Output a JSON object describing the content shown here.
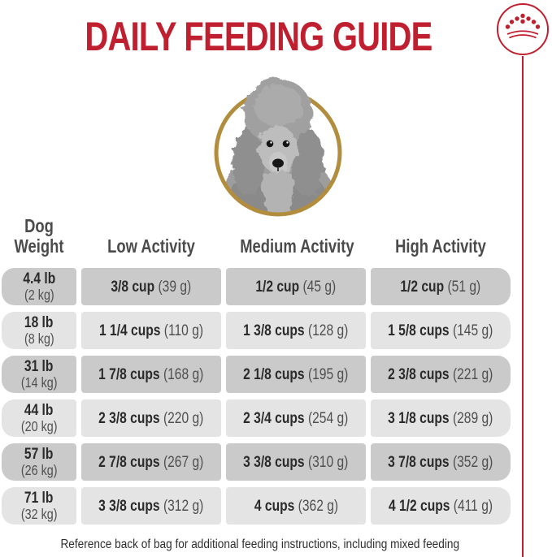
{
  "page": {
    "title": "DAILY FEEDING GUIDE",
    "footer_note": "Reference back of bag for additional feeding instructions, including mixed feeding"
  },
  "brand": {
    "logo": "royal-canin-crown",
    "colors": {
      "title_red": "#c01f2f",
      "ring_gold": "#b18d3d",
      "row_dark": "#cacaca",
      "row_light": "#e4e4e4"
    }
  },
  "hero": {
    "image": "grayscale-poodle-portrait-in-gold-ring"
  },
  "table": {
    "header": {
      "weight_line1": "Dog",
      "weight_line2": "Weight",
      "columns": [
        "Low Activity",
        "Medium Activity",
        "High Activity"
      ]
    },
    "rows": [
      {
        "weight_lb": "4.4 lb",
        "weight_kg": "(2 kg)",
        "low": {
          "amount": "3/8 cup",
          "grams": "(39 g)"
        },
        "medium": {
          "amount": "1/2 cup",
          "grams": "(45 g)"
        },
        "high": {
          "amount": "1/2 cup",
          "grams": "(51 g)"
        }
      },
      {
        "weight_lb": "18 lb",
        "weight_kg": "(8 kg)",
        "low": {
          "amount": "1 1/4 cups",
          "grams": "(110 g)"
        },
        "medium": {
          "amount": "1 3/8 cups",
          "grams": "(128 g)"
        },
        "high": {
          "amount": "1 5/8 cups",
          "grams": "(145 g)"
        }
      },
      {
        "weight_lb": "31 lb",
        "weight_kg": "(14 kg)",
        "low": {
          "amount": "1 7/8 cups",
          "grams": "(168 g)"
        },
        "medium": {
          "amount": "2 1/8 cups",
          "grams": "(195 g)"
        },
        "high": {
          "amount": "2 3/8 cups",
          "grams": "(221 g)"
        }
      },
      {
        "weight_lb": "44 lb",
        "weight_kg": "(20 kg)",
        "low": {
          "amount": "2 3/8 cups",
          "grams": "(220 g)"
        },
        "medium": {
          "amount": "2 3/4 cups",
          "grams": "(254 g)"
        },
        "high": {
          "amount": "3 1/8 cups",
          "grams": "(289 g)"
        }
      },
      {
        "weight_lb": "57 lb",
        "weight_kg": "(26 kg)",
        "low": {
          "amount": "2 7/8 cups",
          "grams": "(267 g)"
        },
        "medium": {
          "amount": "3 3/8 cups",
          "grams": "(310 g)"
        },
        "high": {
          "amount": "3 7/8 cups",
          "grams": "(352 g)"
        }
      },
      {
        "weight_lb": "71 lb",
        "weight_kg": "(32 kg)",
        "low": {
          "amount": "3 3/8 cups",
          "grams": "(312 g)"
        },
        "medium": {
          "amount": "4 cups",
          "grams": "(362 g)"
        },
        "high": {
          "amount": "4 1/2 cups",
          "grams": "(411 g)"
        }
      }
    ]
  },
  "chart_data": {
    "type": "table",
    "title": "DAILY FEEDING GUIDE",
    "columns": [
      "Dog Weight",
      "Low Activity",
      "Medium Activity",
      "High Activity"
    ],
    "rows": [
      [
        "4.4 lb (2 kg)",
        "3/8 cup (39 g)",
        "1/2 cup (45 g)",
        "1/2 cup (51 g)"
      ],
      [
        "18 lb (8 kg)",
        "1 1/4 cups (110 g)",
        "1 3/8 cups (128 g)",
        "1 5/8 cups (145 g)"
      ],
      [
        "31 lb (14 kg)",
        "1 7/8 cups (168 g)",
        "2 1/8 cups (195 g)",
        "2 3/8 cups (221 g)"
      ],
      [
        "44 lb (20 kg)",
        "2 3/8 cups (220 g)",
        "2 3/4 cups (254 g)",
        "3 1/8 cups (289 g)"
      ],
      [
        "57 lb (26 kg)",
        "2 7/8 cups (267 g)",
        "3 3/8 cups (310 g)",
        "3 7/8 cups (352 g)"
      ],
      [
        "71 lb (32 kg)",
        "3 3/8 cups (312 g)",
        "4 cups (362 g)",
        "4 1/2 cups (411 g)"
      ]
    ]
  }
}
